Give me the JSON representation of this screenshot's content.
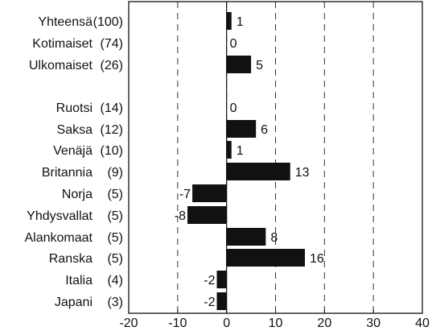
{
  "chart_data": {
    "type": "bar",
    "orientation": "horizontal",
    "title": "",
    "xlabel": "",
    "ylabel": "",
    "xlim": [
      -20,
      40
    ],
    "xticks": [
      -20,
      -10,
      0,
      10,
      20,
      30,
      40
    ],
    "grid": "vertical-dashed",
    "legend": "none",
    "bar_color": "#111111",
    "categories": [
      {
        "label": "Yhteensä",
        "count": "(100)",
        "value": 1
      },
      {
        "label": "Kotimaiset",
        "count": "(74)",
        "value": 0
      },
      {
        "label": "Ulkomaiset",
        "count": "(26)",
        "value": 5
      },
      {
        "label": "Ruotsi",
        "count": "(14)",
        "value": 0
      },
      {
        "label": "Saksa",
        "count": "(12)",
        "value": 6
      },
      {
        "label": "Venäjä",
        "count": "(10)",
        "value": 1
      },
      {
        "label": "Britannia",
        "count": "(9)",
        "value": 13
      },
      {
        "label": "Norja",
        "count": "(5)",
        "value": -7
      },
      {
        "label": "Yhdysvallat",
        "count": "(5)",
        "value": -8
      },
      {
        "label": "Alankomaat",
        "count": "(5)",
        "value": 8
      },
      {
        "label": "Ranska",
        "count": "(5)",
        "value": 16
      },
      {
        "label": "Italia",
        "count": "(4)",
        "value": -2
      },
      {
        "label": "Japani",
        "count": "(3)",
        "value": -2
      }
    ]
  }
}
